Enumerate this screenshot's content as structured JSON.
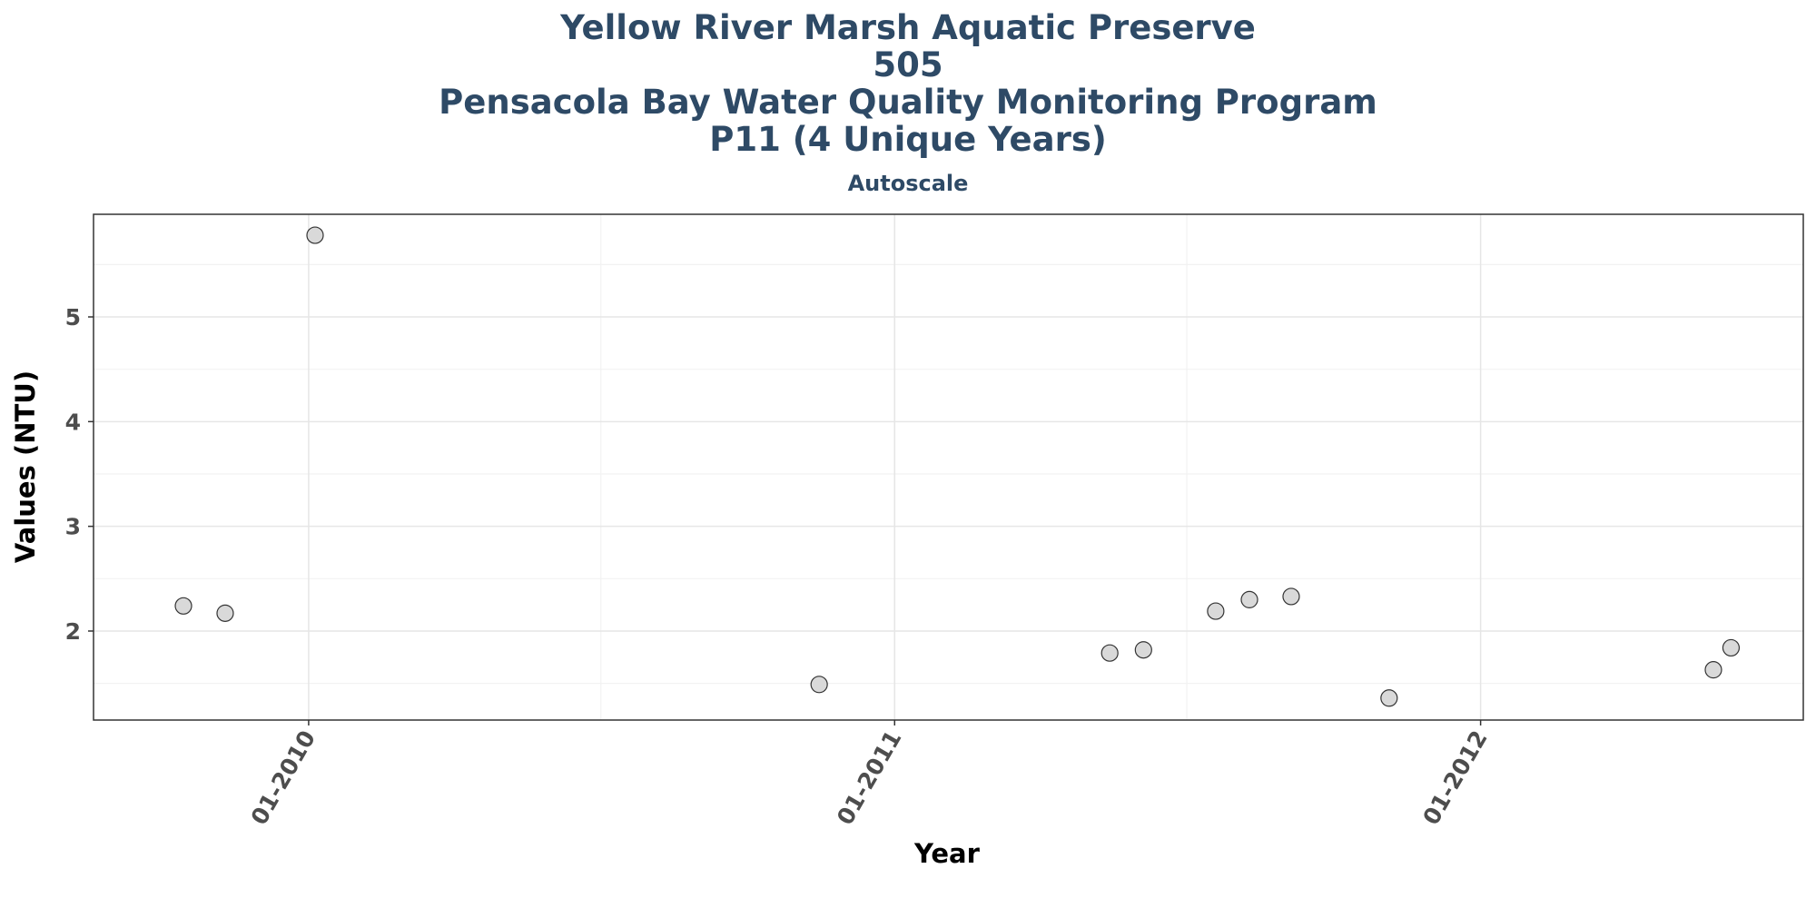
{
  "chart_data": {
    "type": "scatter",
    "title_lines": [
      "Yellow River Marsh Aquatic Preserve",
      "505",
      "Pensacola Bay Water Quality Monitoring Program",
      "P11 (4 Unique Years)"
    ],
    "subtitle": "Autoscale",
    "xlabel": "Year",
    "ylabel": "Values (NTU)",
    "x_ticks": [
      "01-2010",
      "01-2011",
      "01-2012"
    ],
    "y_ticks": [
      2,
      3,
      4,
      5
    ],
    "xlim": [
      "2009-08-20",
      "2012-07-20"
    ],
    "ylim": [
      1.15,
      5.98
    ],
    "grid": true,
    "marker_fill": "#d9d9d9",
    "marker_stroke": "#333333",
    "points": [
      {
        "x": "2009-10-15",
        "y": 2.24
      },
      {
        "x": "2009-11-10",
        "y": 2.17
      },
      {
        "x": "2010-01-05",
        "y": 5.78
      },
      {
        "x": "2010-11-15",
        "y": 1.49
      },
      {
        "x": "2011-05-15",
        "y": 1.79
      },
      {
        "x": "2011-06-05",
        "y": 1.82
      },
      {
        "x": "2011-07-20",
        "y": 2.19
      },
      {
        "x": "2011-08-10",
        "y": 2.3
      },
      {
        "x": "2011-09-05",
        "y": 2.33
      },
      {
        "x": "2011-11-05",
        "y": 1.36
      },
      {
        "x": "2012-05-25",
        "y": 1.63
      },
      {
        "x": "2012-06-05",
        "y": 1.84
      }
    ]
  }
}
